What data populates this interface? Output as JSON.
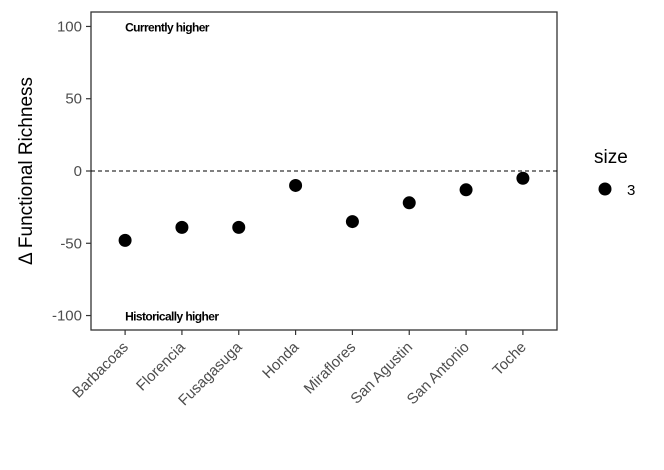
{
  "chart_data": {
    "type": "scatter",
    "title": "",
    "xlabel": "",
    "ylabel": "Δ Functional Richness",
    "categories": [
      "Barbacoas",
      "Florencia",
      "Fusagasuga",
      "Honda",
      "Miraflores",
      "San Agustin",
      "San Antonio",
      "Toche"
    ],
    "series": [
      {
        "values": [
          -48,
          -39,
          -39,
          -10,
          -35,
          -22,
          -13,
          -5
        ]
      }
    ],
    "ylim": [
      -110,
      110
    ],
    "yticks": [
      -100,
      -50,
      0,
      50,
      100
    ],
    "reference_line": {
      "y": 0,
      "style": "dashed"
    },
    "annotations": [
      {
        "text": "Currently higher",
        "category": "Barbacoas",
        "y": 100
      },
      {
        "text": "Historically higher",
        "category": "Barbacoas",
        "y": -100
      }
    ],
    "legend": {
      "title": "size",
      "entries": [
        "3"
      ],
      "position": "right"
    },
    "grid": false,
    "point_color": "#000000"
  }
}
